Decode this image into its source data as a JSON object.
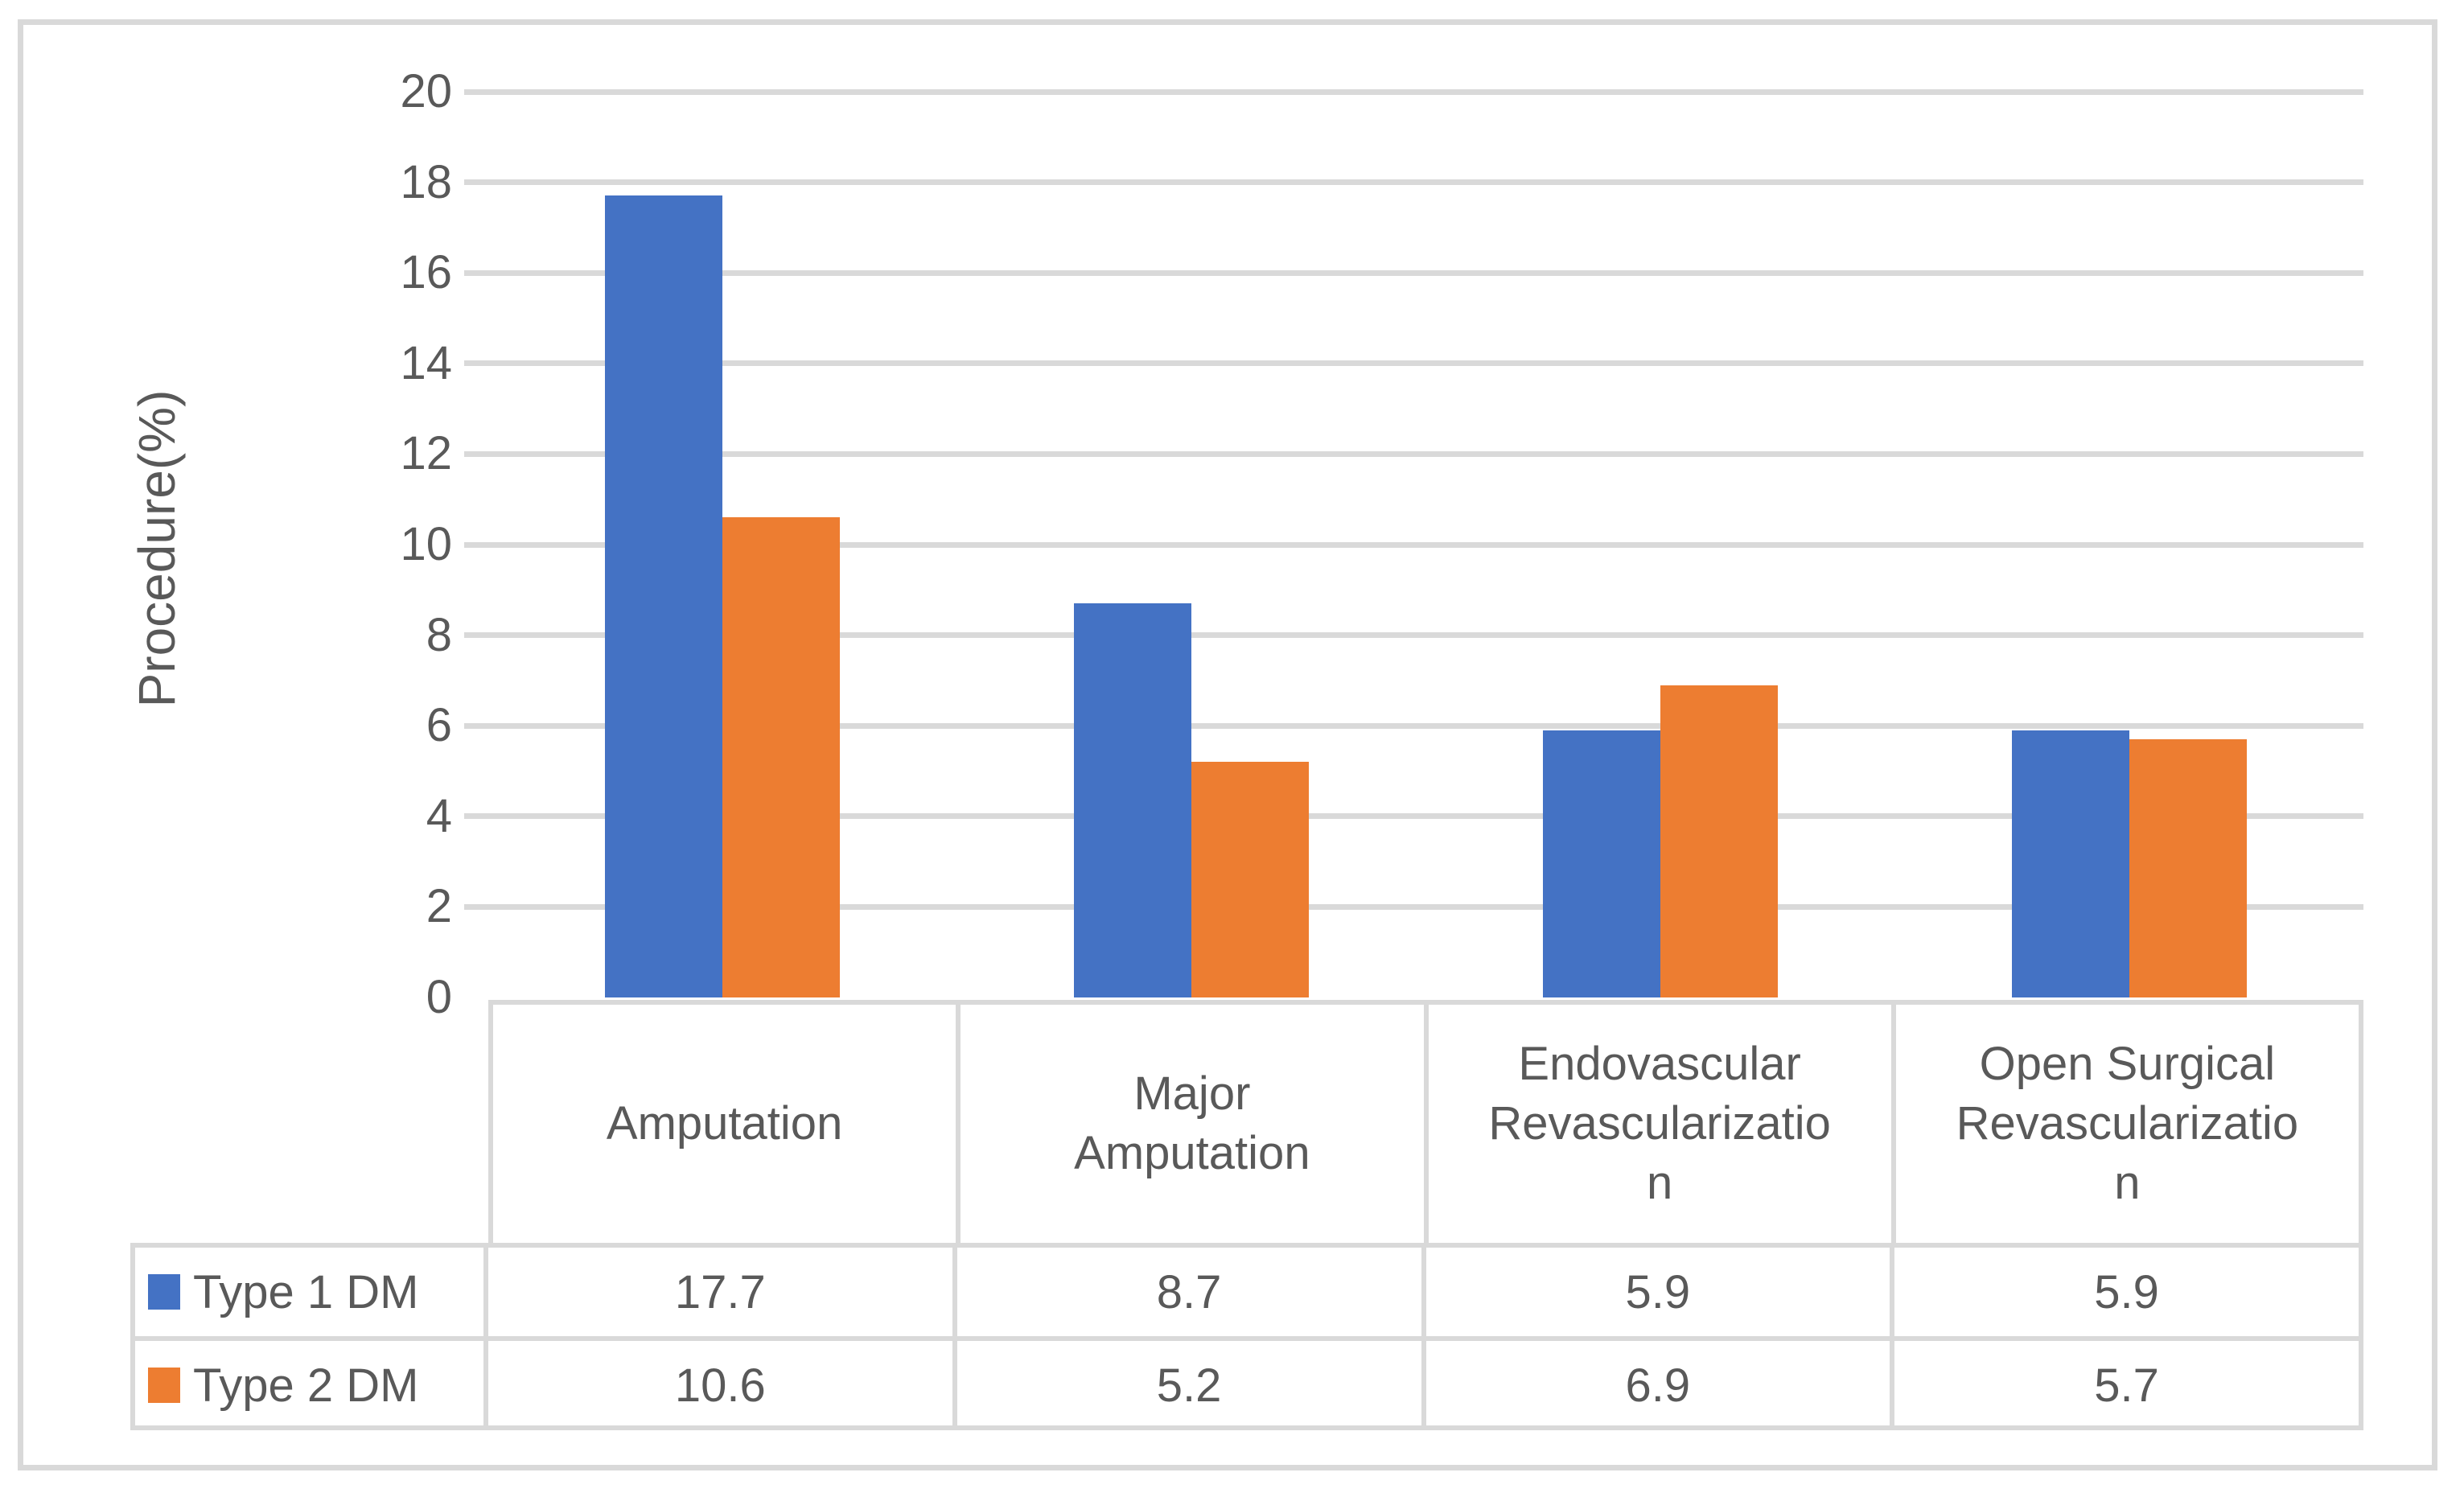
{
  "chart_data": {
    "type": "bar",
    "title": "",
    "xlabel": "",
    "ylabel": "Procedure(%)",
    "ylim": [
      0,
      20
    ],
    "yticks": [
      0,
      2,
      4,
      6,
      8,
      10,
      12,
      14,
      16,
      18,
      20
    ],
    "grid": "horizontal-major-gridlines",
    "legend_position": "data-table-left-column",
    "categories": [
      "Amputation",
      "Major Amputation",
      "Endovascular Revascularization",
      "Open Surgical Revascularization"
    ],
    "category_display_lines": [
      [
        "Amputation"
      ],
      [
        "Major",
        "Amputation"
      ],
      [
        "Endovascular",
        "Revascularizatio",
        "n"
      ],
      [
        "Open Surgical",
        "Revascularizatio",
        "n"
      ]
    ],
    "series": [
      {
        "name": "Type 1 DM",
        "color": "#4472C4",
        "values": [
          17.7,
          8.7,
          5.9,
          5.9
        ]
      },
      {
        "name": "Type 2 DM",
        "color": "#ED7D31",
        "values": [
          10.6,
          5.2,
          6.9,
          5.7
        ]
      }
    ]
  },
  "colors": {
    "background": "#FFFFFF",
    "gridline": "#D9D9D9",
    "table_border": "#D9D9D9",
    "figure_border": "#D9D9D9",
    "text": "#595959"
  }
}
